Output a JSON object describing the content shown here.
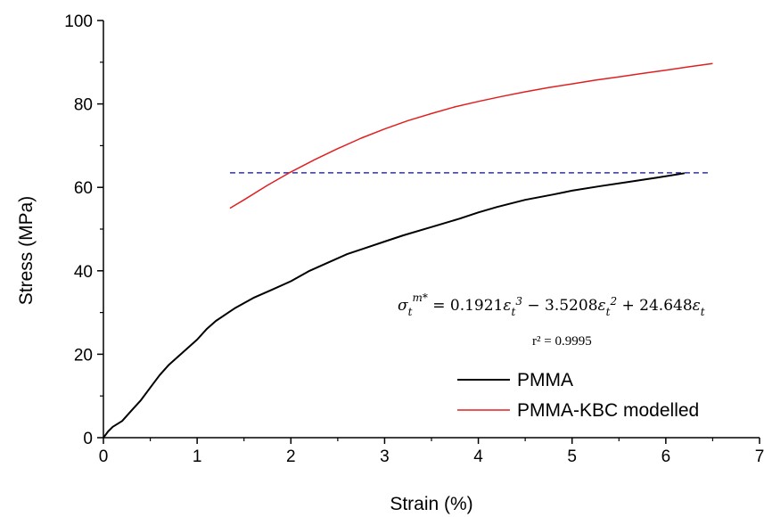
{
  "chart_data": {
    "type": "line",
    "xlabel": "Strain (%)",
    "ylabel": "Stress (MPa)",
    "xlim": [
      0,
      7
    ],
    "ylim": [
      0,
      100
    ],
    "xticks": [
      "0",
      "1",
      "2",
      "3",
      "4",
      "5",
      "6",
      "7"
    ],
    "yticks": [
      "0",
      "20",
      "40",
      "60",
      "80",
      "100"
    ],
    "legend_position": "bottom-right",
    "series": [
      {
        "name": "PMMA",
        "color": "#000000",
        "x": [
          0,
          0.05,
          0.1,
          0.2,
          0.3,
          0.4,
          0.5,
          0.6,
          0.7,
          0.8,
          0.9,
          1.0,
          1.1,
          1.2,
          1.4,
          1.6,
          1.8,
          2.0,
          2.2,
          2.4,
          2.6,
          2.8,
          3.0,
          3.2,
          3.5,
          3.8,
          4.0,
          4.2,
          4.5,
          4.8,
          5.0,
          5.3,
          5.6,
          5.9,
          6.2
        ],
        "y": [
          0,
          1.5,
          2.6,
          4.0,
          6.5,
          9.0,
          12.0,
          15.0,
          17.5,
          19.5,
          21.5,
          23.5,
          26.0,
          28.0,
          31.0,
          33.5,
          35.5,
          37.5,
          40.0,
          42.0,
          44.0,
          45.5,
          47.0,
          48.5,
          50.5,
          52.5,
          54.0,
          55.3,
          57.0,
          58.3,
          59.2,
          60.3,
          61.3,
          62.3,
          63.4
        ]
      },
      {
        "name": "PMMA-KBC modelled",
        "color": "#e02020",
        "x": [
          1.35,
          1.5,
          1.75,
          2.0,
          2.25,
          2.5,
          2.75,
          3.0,
          3.25,
          3.5,
          3.75,
          4.0,
          4.25,
          4.5,
          4.75,
          5.0,
          5.25,
          5.5,
          5.75,
          6.0,
          6.25,
          6.5
        ],
        "y": [
          55.0,
          57.0,
          60.5,
          63.7,
          66.6,
          69.3,
          71.8,
          74.0,
          76.0,
          77.7,
          79.3,
          80.6,
          81.8,
          82.9,
          83.9,
          84.8,
          85.7,
          86.5,
          87.3,
          88.1,
          88.9,
          89.7
        ]
      }
    ],
    "reference_line": {
      "style": "dashed",
      "color": "#2f2fc8",
      "y": 63.5,
      "x_start": 1.35,
      "x_end": 6.45
    },
    "annotations": {
      "equation": "σ_t^{m*} = 0.1921ε_t^3 − 3.5208ε_t^2 + 24.648ε_t",
      "r_squared": "r² = 0.9995"
    }
  }
}
